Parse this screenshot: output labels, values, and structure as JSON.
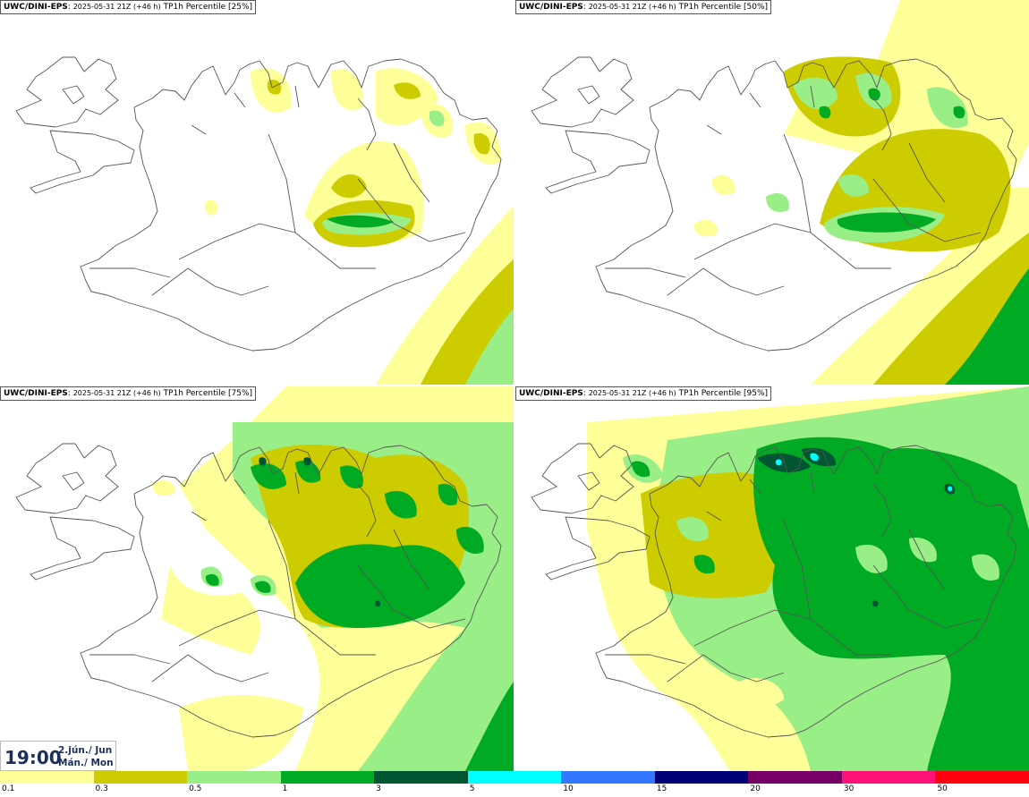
{
  "panels": [
    {
      "model": "UWC/DINI-EPS",
      "run": "2025-05-31 21Z (+46 h)",
      "field": "TP1h Percentile [25%]"
    },
    {
      "model": "UWC/DINI-EPS",
      "run": "2025-05-31 21Z (+46 h)",
      "field": "TP1h Percentile [50%]"
    },
    {
      "model": "UWC/DINI-EPS",
      "run": "2025-05-31 21Z (+46 h)",
      "field": "TP1h Percentile [75%]"
    },
    {
      "model": "UWC/DINI-EPS",
      "run": "2025-05-31 21Z (+46 h)",
      "field": "TP1h Percentile [95%]"
    }
  ],
  "valid": {
    "time": "19:00",
    "date_line1": "2.jún./ Jun",
    "date_line2": "Mán./ Mon"
  },
  "colorbar": {
    "ticks": [
      "0.1",
      "0.3",
      "0.5",
      "1",
      "3",
      "5",
      "10",
      "15",
      "20",
      "30",
      "50"
    ],
    "colors": [
      "#ffff99",
      "#cccc00",
      "#99ee88",
      "#00aa22",
      "#005533",
      "#00ffff",
      "#3377ff",
      "#000077",
      "#770066",
      "#ff1177",
      "#ff0011"
    ]
  },
  "map_colors": {
    "lt_yellow": "#ffff99",
    "olive": "#cccc00",
    "lt_green": "#99ee88",
    "green": "#00aa22",
    "dk_green": "#005533",
    "cyan": "#00ffff",
    "coast": "#555555"
  }
}
